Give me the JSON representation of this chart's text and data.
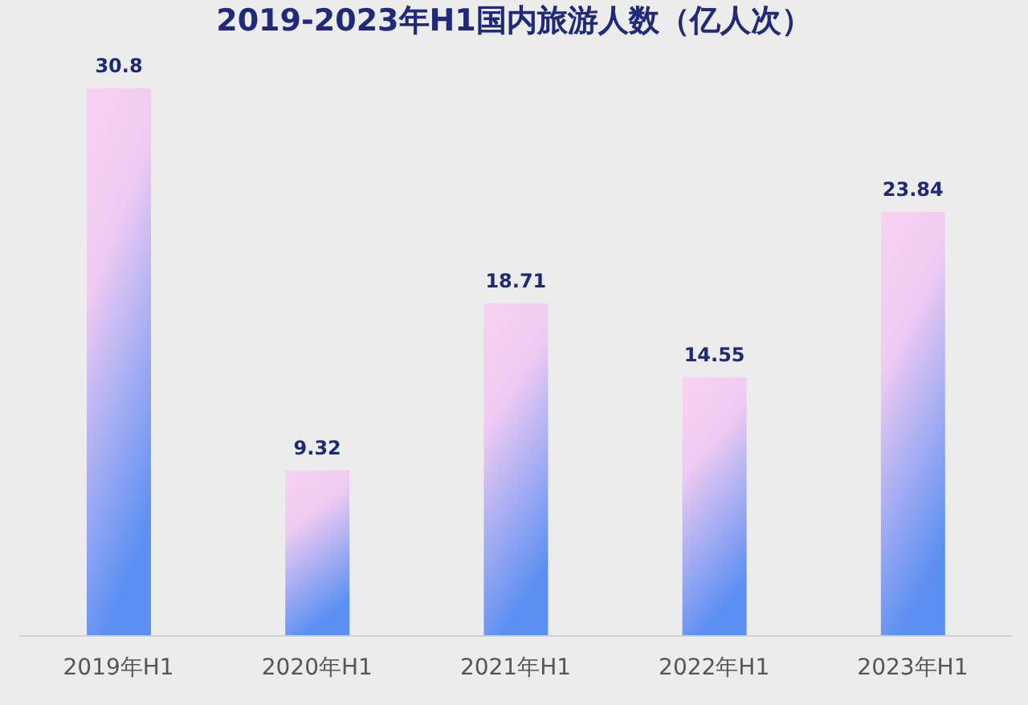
{
  "chart_data": {
    "type": "bar",
    "title": "2019-2023年H1国内旅游人数（亿人次）",
    "categories": [
      "2019年H1",
      "2020年H1",
      "2021年H1",
      "2022年H1",
      "2023年H1"
    ],
    "values": [
      30.8,
      9.32,
      18.71,
      14.55,
      23.84
    ],
    "color": "#5b8ff2",
    "data_labels": true,
    "tick_labels": "x",
    "grid": false
  }
}
